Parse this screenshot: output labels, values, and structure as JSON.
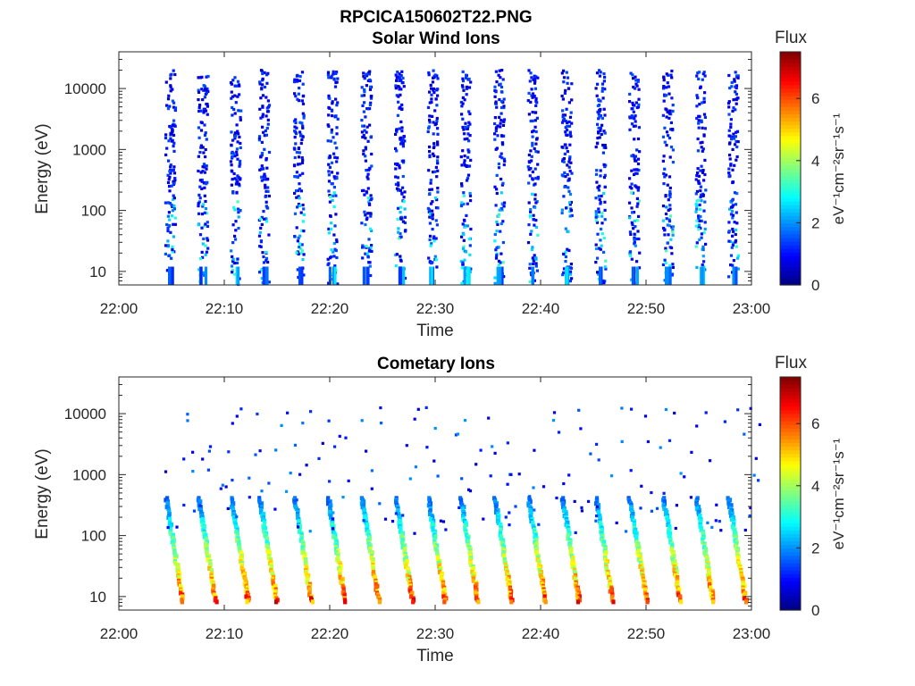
{
  "figure_title": "RPCICA150602T22.PNG",
  "colormap": "jet",
  "chart_data": [
    {
      "type": "heatmap",
      "title": "Solar Wind Ions",
      "xlabel": "Time",
      "ylabel": "Energy (eV)",
      "x_ticks": [
        "22:00",
        "22:10",
        "22:20",
        "22:30",
        "22:40",
        "22:50",
        "23:00"
      ],
      "x_range_minutes": [
        0,
        60
      ],
      "y_scale": "log",
      "y_ticks": [
        10,
        100,
        1000,
        10000
      ],
      "y_tick_labels": [
        "10",
        "100",
        "1000",
        "10000"
      ],
      "ylim": [
        6,
        40000
      ],
      "colorbar": {
        "title": "Flux",
        "label": "eV⁻¹cm⁻²sr⁻¹s⁻¹",
        "ticks": [
          "0",
          "2",
          "4",
          "6"
        ],
        "range": [
          0,
          7.5
        ]
      },
      "sweep_start_minutes": [
        4.3,
        7.4,
        10.5,
        13.2,
        16.5,
        19.7,
        22.9,
        26.1,
        29.2,
        32.3,
        35.5,
        38.7,
        41.9,
        45.1,
        48.3,
        51.5,
        54.6,
        57.7
      ],
      "sweep_energy_range_eV": [
        6,
        20000
      ],
      "typical_flux": 1.2
    },
    {
      "type": "heatmap",
      "title": "Cometary Ions",
      "xlabel": "Time",
      "ylabel": "Energy (eV)",
      "x_ticks": [
        "22:00",
        "22:10",
        "22:20",
        "22:30",
        "22:40",
        "22:50",
        "23:00"
      ],
      "x_range_minutes": [
        0,
        60
      ],
      "y_scale": "log",
      "y_ticks": [
        10,
        100,
        1000,
        10000
      ],
      "y_tick_labels": [
        "10",
        "100",
        "1000",
        "10000"
      ],
      "ylim": [
        6,
        40000
      ],
      "colorbar": {
        "title": "Flux",
        "label": "eV⁻¹cm⁻²sr⁻¹s⁻¹",
        "ticks": [
          "0",
          "2",
          "4",
          "6"
        ],
        "range": [
          0,
          7.5
        ]
      },
      "sweep_start_minutes": [
        4.3,
        7.4,
        10.5,
        13.2,
        16.5,
        19.7,
        22.9,
        26.1,
        29.2,
        32.3,
        35.5,
        38.7,
        41.9,
        45.1,
        48.3,
        51.5,
        54.6,
        57.7
      ],
      "peak_energy_range_eV": [
        8,
        400
      ],
      "peak_flux": 6.4
    }
  ]
}
